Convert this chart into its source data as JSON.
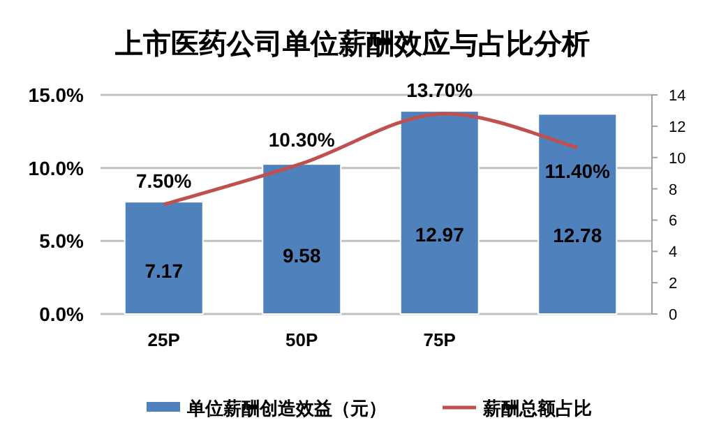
{
  "chart_data": {
    "type": "bar",
    "title": "上市医药公司单位薪酬效应与占比分析",
    "categories": [
      "25P",
      "50P",
      "75P",
      null
    ],
    "series": [
      {
        "name": "单位薪酬创造效益（元）",
        "axis": "y2",
        "color": "#4f81bd",
        "values": [
          7.17,
          9.58,
          12.97,
          12.78
        ],
        "value_labels": [
          "7.17",
          "9.58",
          "12.97",
          "12.78"
        ]
      },
      {
        "name": "薪酬总额占比",
        "type": "line",
        "axis": "y",
        "color": "#c0504d",
        "values": [
          7.5,
          10.3,
          13.7,
          11.4
        ],
        "value_labels": [
          "7.50%",
          "10.30%",
          "13.70%",
          "11.40%"
        ]
      }
    ],
    "ylim": [
      0,
      15
    ],
    "yticks": [
      {
        "value": 0,
        "label": "0.0%"
      },
      {
        "value": 5,
        "label": "5.0%"
      },
      {
        "value": 10,
        "label": "10.0%"
      },
      {
        "value": 15,
        "label": "15.0%"
      }
    ],
    "y2lim": [
      0,
      14
    ],
    "y2ticks": [
      0,
      2,
      4,
      6,
      8,
      10,
      12,
      14
    ],
    "grid": "y",
    "legend": "bottom",
    "line_style": "solid"
  }
}
